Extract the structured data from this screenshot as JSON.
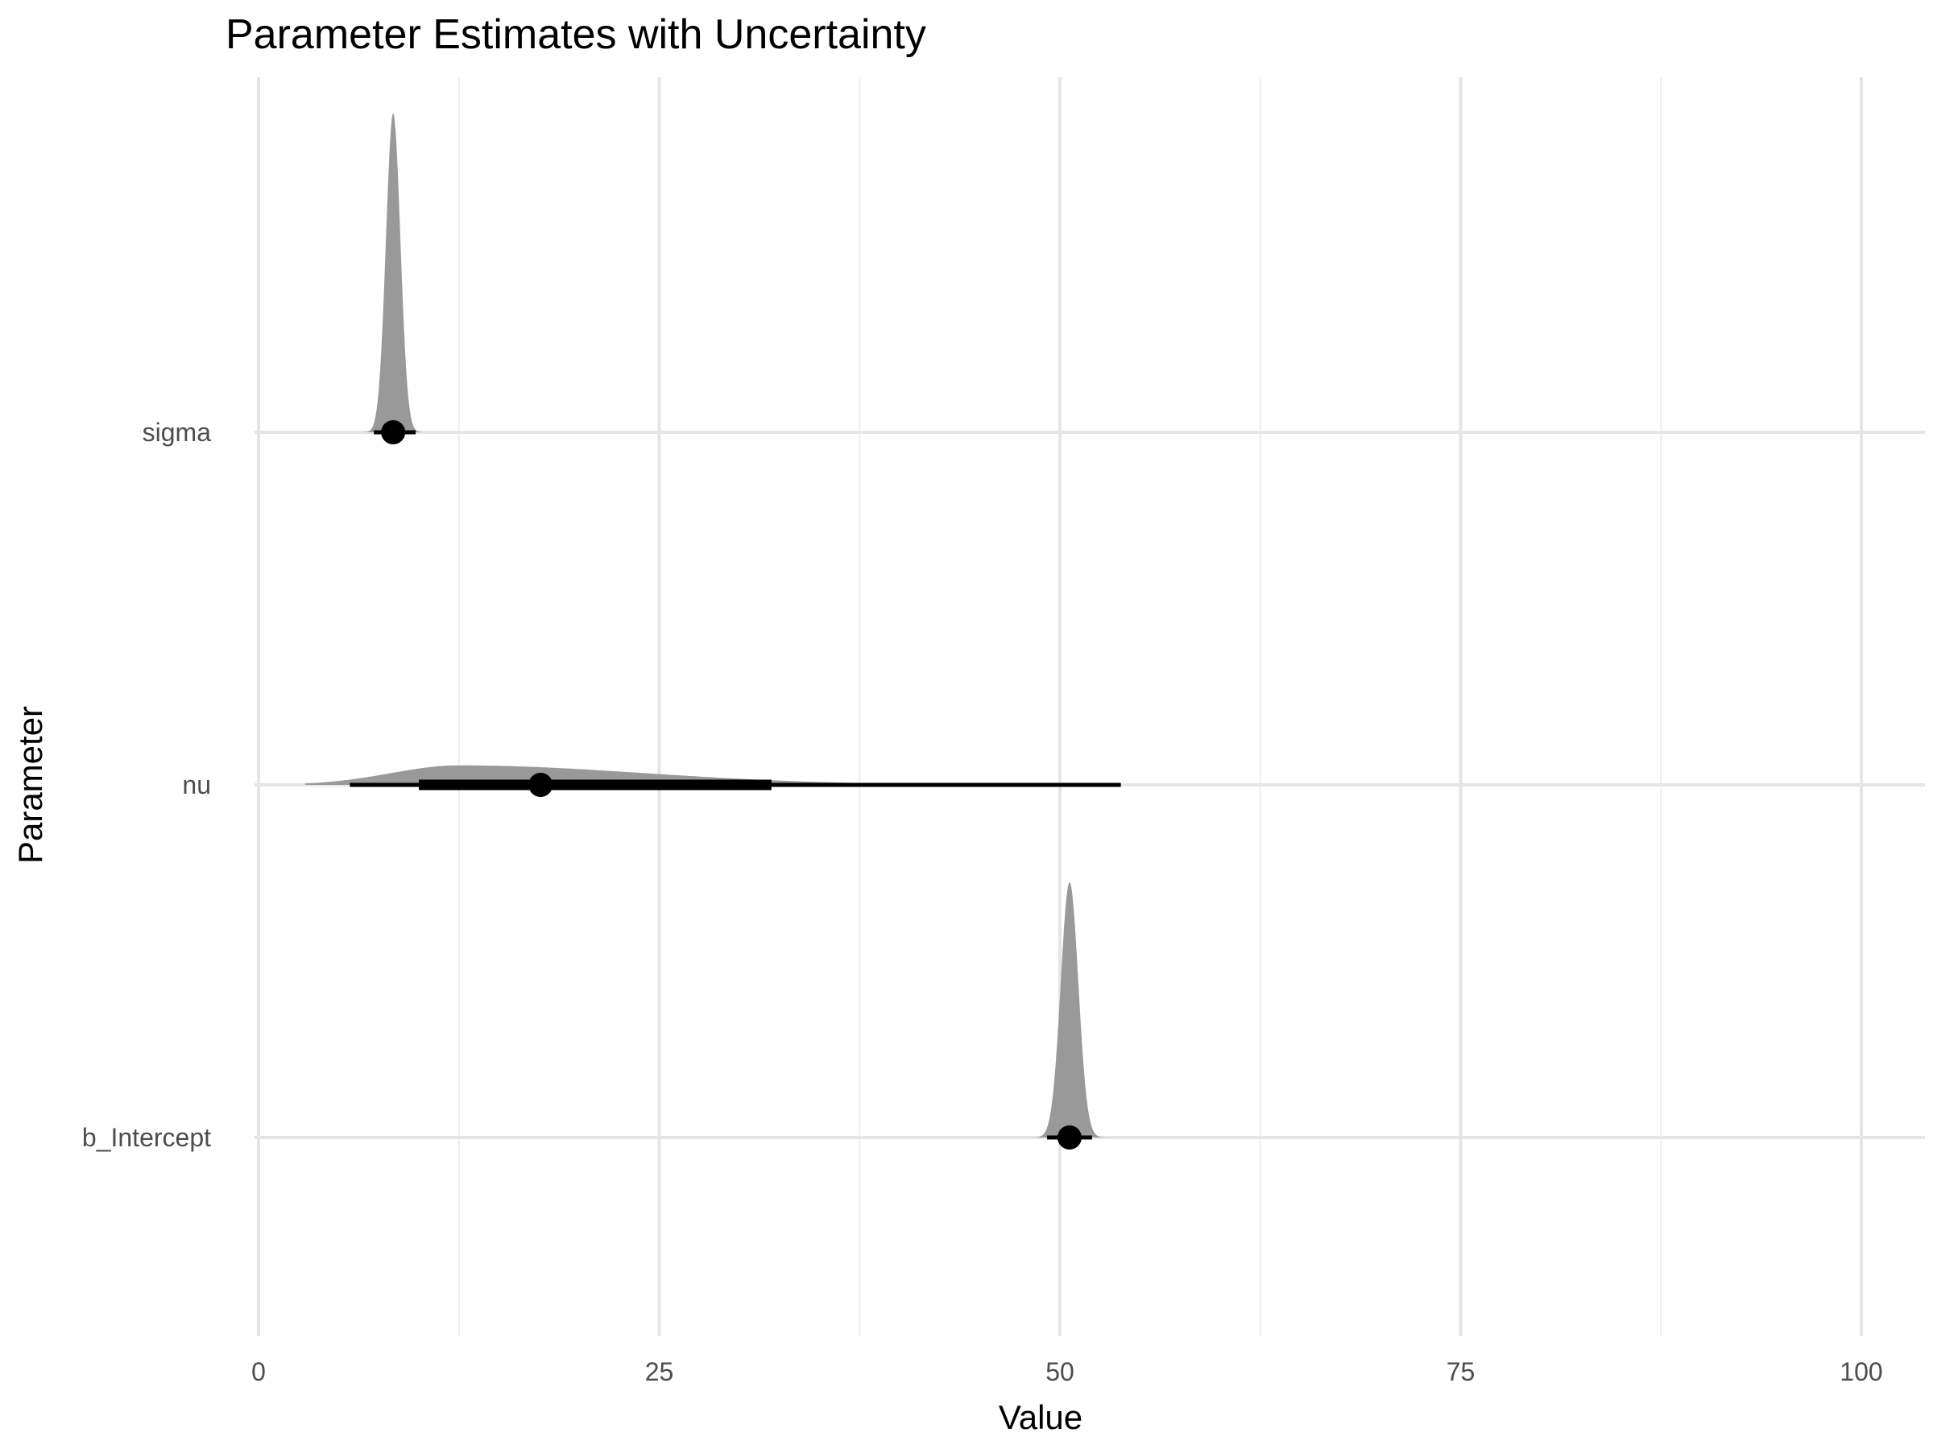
{
  "chart_data": {
    "type": "density-interval",
    "title": "Parameter Estimates with Uncertainty",
    "xlabel": "Value",
    "ylabel": "Parameter",
    "xlim": [
      -1,
      104
    ],
    "x_ticks": [
      0,
      25,
      50,
      75,
      100
    ],
    "x_tick_labels": [
      "0",
      "25",
      "50",
      "75",
      "100"
    ],
    "grid": true,
    "legend": "none",
    "colors": {
      "density": "#999999",
      "interval": "#000000",
      "point": "#000000",
      "grid": "#e5e5e5"
    },
    "series": [
      {
        "name": "sigma",
        "point": 8.4,
        "interval_66": [
          7.8,
          9.1
        ],
        "interval_95": [
          7.2,
          9.8
        ],
        "density": {
          "peak": 8.4,
          "sd_left": 0.45,
          "sd_right": 0.45,
          "range": [
            5.8,
            11.0
          ],
          "height": 0.9
        }
      },
      {
        "name": "nu",
        "point": 17.6,
        "interval_66": [
          10.0,
          32.0
        ],
        "interval_95": [
          5.7,
          53.8
        ],
        "density": {
          "peak": 12.5,
          "sd_left": 4.2,
          "sd_right": 11.5,
          "range": [
            2.9,
            75.0
          ],
          "height": 0.055
        }
      },
      {
        "name": "b_Intercept",
        "point": 50.6,
        "interval_66": [
          50.0,
          51.2
        ],
        "interval_95": [
          49.2,
          52.0
        ],
        "density": {
          "peak": 50.6,
          "sd_left": 0.55,
          "sd_right": 0.55,
          "range": [
            48.0,
            53.1
          ],
          "height": 0.72
        }
      }
    ]
  }
}
